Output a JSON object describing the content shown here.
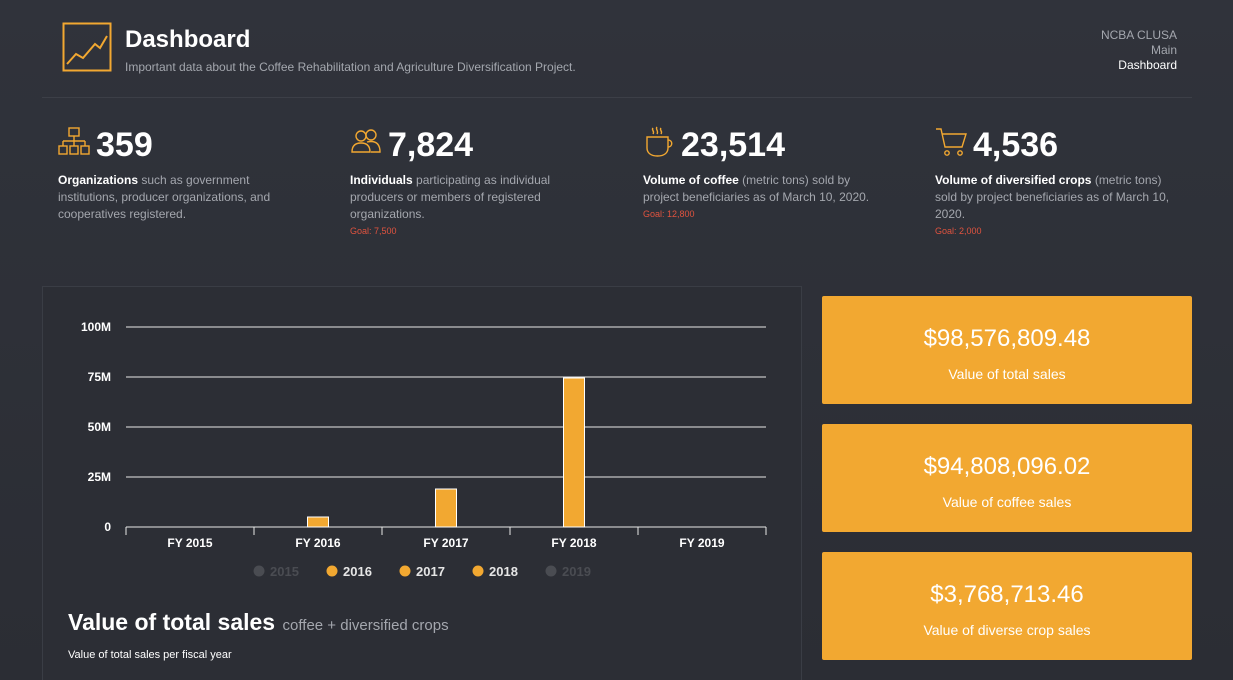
{
  "header": {
    "title": "Dashboard",
    "subtitle": "Important data about the Coffee Rehabilitation and Agriculture Diversification Project.",
    "breadcrumbs": [
      "NCBA CLUSA",
      "Main",
      "Dashboard"
    ]
  },
  "colors": {
    "accent": "#f2a831",
    "goal": "#e0533f",
    "background": "#2d3037"
  },
  "stats": [
    {
      "icon": "org-chart-icon",
      "value": "359",
      "label": "Organizations",
      "text": " such as government institutions, producer organizations, and cooperatives registered.",
      "goal": ""
    },
    {
      "icon": "people-icon",
      "value": "7,824",
      "label": "Individuals",
      "text": " participating as individual producers or members of registered organizations.",
      "goal": "Goal: 7,500"
    },
    {
      "icon": "coffee-cup-icon",
      "value": "23,514",
      "label": "Volume of coffee",
      "text": " (metric tons) sold by project beneficiaries as of March 10, 2020.",
      "goal": "Goal: 12,800"
    },
    {
      "icon": "shopping-cart-icon",
      "value": "4,536",
      "label": "Volume of diversified crops",
      "text": " (metric tons) sold by project beneficiaries as of March 10, 2020.",
      "goal": "Goal: 2,000"
    }
  ],
  "chart": {
    "title": "Value of total sales",
    "subtitle": "coffee + diversified crops",
    "caption": "Value of total sales per fiscal year"
  },
  "chart_data": {
    "type": "bar",
    "categories": [
      "FY 2015",
      "FY 2016",
      "FY 2017",
      "FY 2018",
      "FY 2019"
    ],
    "series": [
      {
        "name": "2015",
        "values": [
          0,
          0,
          0,
          0,
          0
        ],
        "visible": false
      },
      {
        "name": "2016",
        "values": [
          0,
          5000000,
          0,
          0,
          0
        ],
        "visible": true
      },
      {
        "name": "2017",
        "values": [
          0,
          0,
          19000000,
          0,
          0
        ],
        "visible": true
      },
      {
        "name": "2018",
        "values": [
          0,
          0,
          0,
          74500000,
          0
        ],
        "visible": true
      },
      {
        "name": "2019",
        "values": [
          0,
          0,
          0,
          0,
          0
        ],
        "visible": false
      }
    ],
    "yticks": [
      "0",
      "25M",
      "50M",
      "75M",
      "100M"
    ],
    "ylim": [
      0,
      100000000
    ],
    "grid": true,
    "legend": "bottom",
    "bar_color": "#f2a831",
    "hidden_color": "#4a4c52"
  },
  "cards": [
    {
      "value": "$98,576,809.48",
      "label": "Value of total sales"
    },
    {
      "value": "$94,808,096.02",
      "label": "Value of coffee sales"
    },
    {
      "value": "$3,768,713.46",
      "label": "Value of diverse crop sales"
    }
  ]
}
